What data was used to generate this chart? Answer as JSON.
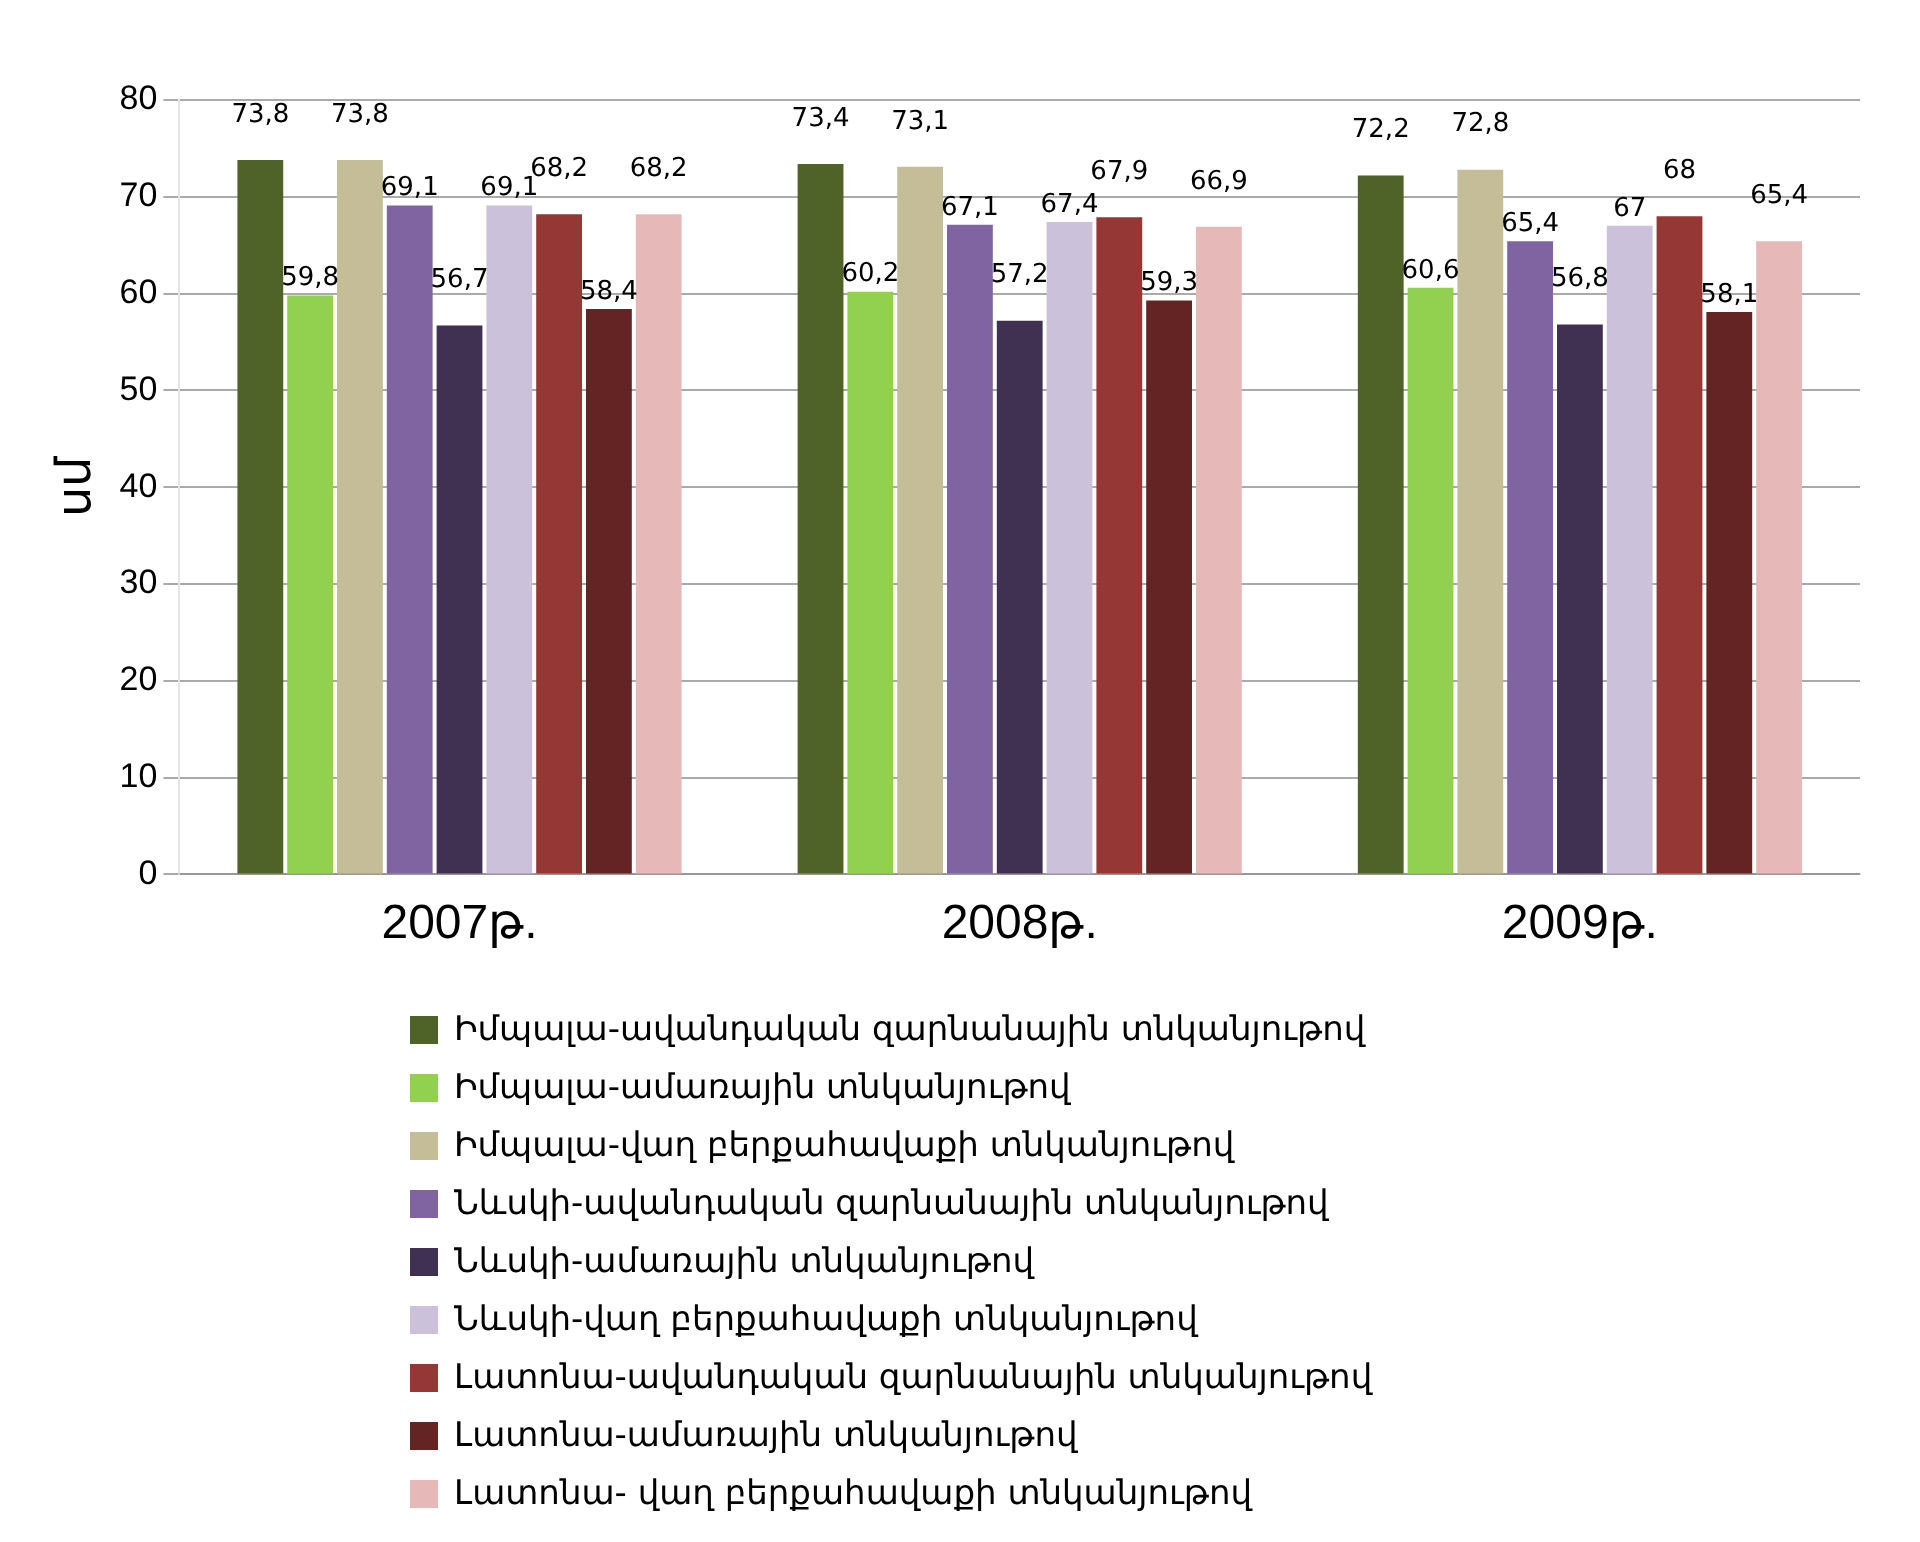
{
  "chart_data": {
    "type": "bar",
    "ylabel": "սմ",
    "categories": [
      "2007թ.",
      "2008թ.",
      "2009թ."
    ],
    "ylim": [
      0,
      80
    ],
    "yticks": [
      0,
      10,
      20,
      30,
      40,
      50,
      60,
      70,
      80
    ],
    "grid": "y",
    "legend": "bottom",
    "series": [
      {
        "name": "Իմպալա-ավանդական զարնանային տնկանյութով",
        "color": "#4f6228",
        "values": [
          73.8,
          73.4,
          72.2
        ],
        "value_labels": [
          "73,8",
          "73,4",
          "72,2"
        ]
      },
      {
        "name": "Իմպալա-ամառային տնկանյութով",
        "color": "#92d050",
        "values": [
          59.8,
          60.2,
          60.6
        ],
        "value_labels": [
          "59,8",
          "60,2",
          "60,6"
        ]
      },
      {
        "name": "Իմպալա-վաղ բերքահավաքի տնկանյութով",
        "color": "#c4bd97",
        "values": [
          73.8,
          73.1,
          72.8
        ],
        "value_labels": [
          "73,8",
          "73,1",
          "72,8"
        ]
      },
      {
        "name": "Նևսկի-ավանդական զարնանային տնկանյութով",
        "color": "#8064a2",
        "values": [
          69.1,
          67.1,
          65.4
        ],
        "value_labels": [
          "69,1",
          "67,1",
          "65,4"
        ]
      },
      {
        "name": "Նևսկի-ամառային տնկանյութով",
        "color": "#403152",
        "values": [
          56.7,
          57.2,
          56.8
        ],
        "value_labels": [
          "56,7",
          "57,2",
          "56,8"
        ]
      },
      {
        "name": "Նևսկի-վաղ բերքահավաքի տնկանյութով",
        "color": "#ccc1da",
        "values": [
          69.1,
          67.4,
          67
        ],
        "value_labels": [
          "69,1",
          "67,4",
          "67"
        ]
      },
      {
        "name": "Լատոնա-ավանդական զարնանային տնկանյութով",
        "color": "#953735",
        "values": [
          68.2,
          67.9,
          68
        ],
        "value_labels": [
          "68,2",
          "67,9",
          "68"
        ]
      },
      {
        "name": "Լատոնա-ամառային տնկանյութով",
        "color": "#632423",
        "values": [
          58.4,
          59.3,
          58.1
        ],
        "value_labels": [
          "58,4",
          "59,3",
          "58,1"
        ]
      },
      {
        "name": "Լատոնա- վաղ բերքահավաքի տնկանյութով",
        "color": "#e6b9b8",
        "values": [
          68.2,
          66.9,
          65.4
        ],
        "value_labels": [
          "68,2",
          "66,9",
          "65,4"
        ]
      }
    ]
  }
}
